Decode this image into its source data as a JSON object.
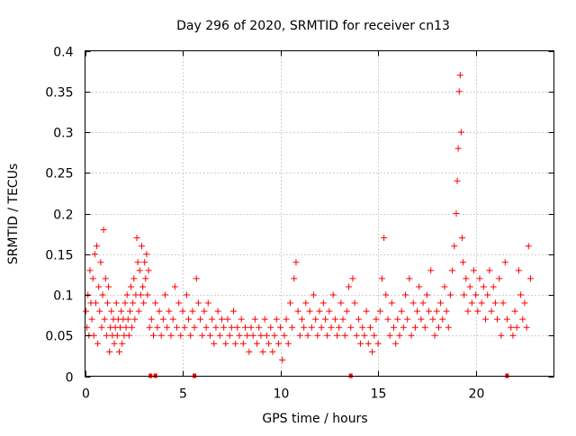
{
  "chart_data": {
    "type": "scatter",
    "title": "Day 296 of 2020, SRMTID for receiver cn13",
    "xlabel": "GPS time / hours",
    "ylabel": "SRMTID / TECUs",
    "xlim": [
      0,
      24
    ],
    "ylim": [
      0,
      0.4
    ],
    "x_ticks": [
      0,
      5,
      10,
      15,
      20
    ],
    "x_tick_labels": [
      "0",
      "5",
      "10",
      "15",
      "20"
    ],
    "y_ticks": [
      0,
      0.05,
      0.1,
      0.15,
      0.2,
      0.25,
      0.3,
      0.35,
      0.4
    ],
    "y_tick_labels": [
      "0",
      "0.05",
      "0.1",
      "0.15",
      "0.2",
      "0.25",
      "0.3",
      "0.35",
      "0.4"
    ],
    "grid": true,
    "marker": "+",
    "series": [
      {
        "name": "SRMTID",
        "color": "#ff0000",
        "points": [
          [
            0.05,
            0.08
          ],
          [
            0.1,
            0.06
          ],
          [
            0.15,
            0.1
          ],
          [
            0.2,
            0.05
          ],
          [
            0.25,
            0.13
          ],
          [
            0.3,
            0.09
          ],
          [
            0.35,
            0.07
          ],
          [
            0.4,
            0.12
          ],
          [
            0.45,
            0.05
          ],
          [
            0.5,
            0.15
          ],
          [
            0.55,
            0.09
          ],
          [
            0.6,
            0.16
          ],
          [
            0.65,
            0.04
          ],
          [
            0.7,
            0.11
          ],
          [
            0.75,
            0.08
          ],
          [
            0.8,
            0.14
          ],
          [
            0.85,
            0.06
          ],
          [
            0.9,
            0.1
          ],
          [
            0.95,
            0.18
          ],
          [
            1.0,
            0.07
          ],
          [
            1.05,
            0.12
          ],
          [
            1.1,
            0.05
          ],
          [
            1.15,
            0.09
          ],
          [
            1.2,
            0.11
          ],
          [
            1.25,
            0.03
          ],
          [
            1.3,
            0.06
          ],
          [
            1.35,
            0.08
          ],
          [
            1.4,
            0.05
          ],
          [
            1.45,
            0.07
          ],
          [
            1.5,
            0.04
          ],
          [
            1.55,
            0.06
          ],
          [
            1.6,
            0.09
          ],
          [
            1.65,
            0.05
          ],
          [
            1.7,
            0.07
          ],
          [
            1.75,
            0.03
          ],
          [
            1.8,
            0.06
          ],
          [
            1.85,
            0.08
          ],
          [
            1.9,
            0.04
          ],
          [
            1.95,
            0.07
          ],
          [
            2.0,
            0.05
          ],
          [
            2.05,
            0.09
          ],
          [
            2.1,
            0.06
          ],
          [
            2.15,
            0.1
          ],
          [
            2.2,
            0.07
          ],
          [
            2.25,
            0.05
          ],
          [
            2.3,
            0.08
          ],
          [
            2.35,
            0.11
          ],
          [
            2.4,
            0.06
          ],
          [
            2.45,
            0.09
          ],
          [
            2.5,
            0.12
          ],
          [
            2.55,
            0.07
          ],
          [
            2.6,
            0.1
          ],
          [
            2.65,
            0.17
          ],
          [
            2.7,
            0.14
          ],
          [
            2.75,
            0.08
          ],
          [
            2.8,
            0.13
          ],
          [
            2.85,
            0.1
          ],
          [
            2.9,
            0.16
          ],
          [
            2.95,
            0.11
          ],
          [
            3.0,
            0.09
          ],
          [
            3.05,
            0.14
          ],
          [
            3.1,
            0.12
          ],
          [
            3.15,
            0.15
          ],
          [
            3.2,
            0.1
          ],
          [
            3.25,
            0.13
          ],
          [
            3.3,
            0.06
          ],
          [
            3.4,
            0.07
          ],
          [
            3.5,
            0.05
          ],
          [
            3.6,
            0.09
          ],
          [
            3.7,
            0.06
          ],
          [
            3.8,
            0.08
          ],
          [
            3.9,
            0.05
          ],
          [
            4.0,
            0.07
          ],
          [
            4.1,
            0.1
          ],
          [
            4.2,
            0.06
          ],
          [
            4.3,
            0.08
          ],
          [
            4.4,
            0.05
          ],
          [
            4.5,
            0.07
          ],
          [
            4.6,
            0.11
          ],
          [
            4.7,
            0.06
          ],
          [
            4.8,
            0.09
          ],
          [
            4.9,
            0.05
          ],
          [
            5.0,
            0.08
          ],
          [
            5.1,
            0.06
          ],
          [
            5.2,
            0.1
          ],
          [
            5.3,
            0.07
          ],
          [
            5.4,
            0.05
          ],
          [
            5.5,
            0.08
          ],
          [
            5.6,
            0.06
          ],
          [
            5.7,
            0.12
          ],
          [
            5.8,
            0.09
          ],
          [
            5.9,
            0.07
          ],
          [
            6.0,
            0.05
          ],
          [
            6.1,
            0.08
          ],
          [
            6.2,
            0.06
          ],
          [
            6.3,
            0.09
          ],
          [
            6.4,
            0.05
          ],
          [
            6.5,
            0.07
          ],
          [
            6.6,
            0.04
          ],
          [
            6.7,
            0.06
          ],
          [
            6.8,
            0.08
          ],
          [
            6.9,
            0.05
          ],
          [
            7.0,
            0.07
          ],
          [
            7.1,
            0.06
          ],
          [
            7.2,
            0.04
          ],
          [
            7.3,
            0.07
          ],
          [
            7.4,
            0.05
          ],
          [
            7.5,
            0.06
          ],
          [
            7.6,
            0.08
          ],
          [
            7.7,
            0.04
          ],
          [
            7.8,
            0.06
          ],
          [
            7.9,
            0.05
          ],
          [
            8.0,
            0.07
          ],
          [
            8.1,
            0.04
          ],
          [
            8.2,
            0.06
          ],
          [
            8.3,
            0.05
          ],
          [
            8.4,
            0.03
          ],
          [
            8.5,
            0.06
          ],
          [
            8.6,
            0.05
          ],
          [
            8.7,
            0.07
          ],
          [
            8.8,
            0.04
          ],
          [
            8.9,
            0.06
          ],
          [
            9.0,
            0.05
          ],
          [
            9.1,
            0.03
          ],
          [
            9.2,
            0.07
          ],
          [
            9.3,
            0.05
          ],
          [
            9.4,
            0.04
          ],
          [
            9.5,
            0.06
          ],
          [
            9.6,
            0.03
          ],
          [
            9.7,
            0.05
          ],
          [
            9.8,
            0.07
          ],
          [
            9.9,
            0.04
          ],
          [
            10.0,
            0.06
          ],
          [
            10.1,
            0.02
          ],
          [
            10.2,
            0.05
          ],
          [
            10.3,
            0.07
          ],
          [
            10.4,
            0.04
          ],
          [
            10.5,
            0.09
          ],
          [
            10.6,
            0.06
          ],
          [
            10.7,
            0.12
          ],
          [
            10.8,
            0.14
          ],
          [
            10.9,
            0.08
          ],
          [
            11.0,
            0.05
          ],
          [
            11.1,
            0.07
          ],
          [
            11.2,
            0.06
          ],
          [
            11.3,
            0.09
          ],
          [
            11.4,
            0.05
          ],
          [
            11.5,
            0.08
          ],
          [
            11.6,
            0.06
          ],
          [
            11.7,
            0.1
          ],
          [
            11.8,
            0.07
          ],
          [
            11.9,
            0.05
          ],
          [
            12.0,
            0.08
          ],
          [
            12.1,
            0.06
          ],
          [
            12.2,
            0.09
          ],
          [
            12.3,
            0.07
          ],
          [
            12.4,
            0.05
          ],
          [
            12.5,
            0.08
          ],
          [
            12.6,
            0.06
          ],
          [
            12.7,
            0.1
          ],
          [
            12.8,
            0.07
          ],
          [
            12.9,
            0.05
          ],
          [
            13.0,
            0.06
          ],
          [
            13.1,
            0.09
          ],
          [
            13.2,
            0.07
          ],
          [
            13.3,
            0.05
          ],
          [
            13.4,
            0.08
          ],
          [
            13.5,
            0.11
          ],
          [
            13.6,
            0.06
          ],
          [
            13.7,
            0.12
          ],
          [
            13.8,
            0.09
          ],
          [
            13.9,
            0.05
          ],
          [
            14.0,
            0.07
          ],
          [
            14.1,
            0.04
          ],
          [
            14.2,
            0.06
          ],
          [
            14.3,
            0.05
          ],
          [
            14.4,
            0.08
          ],
          [
            14.5,
            0.04
          ],
          [
            14.6,
            0.06
          ],
          [
            14.7,
            0.03
          ],
          [
            14.8,
            0.05
          ],
          [
            14.9,
            0.07
          ],
          [
            15.0,
            0.04
          ],
          [
            15.1,
            0.08
          ],
          [
            15.2,
            0.12
          ],
          [
            15.3,
            0.17
          ],
          [
            15.4,
            0.1
          ],
          [
            15.5,
            0.07
          ],
          [
            15.6,
            0.05
          ],
          [
            15.7,
            0.09
          ],
          [
            15.8,
            0.06
          ],
          [
            15.9,
            0.04
          ],
          [
            16.0,
            0.07
          ],
          [
            16.1,
            0.05
          ],
          [
            16.2,
            0.08
          ],
          [
            16.3,
            0.06
          ],
          [
            16.4,
            0.1
          ],
          [
            16.5,
            0.07
          ],
          [
            16.6,
            0.12
          ],
          [
            16.7,
            0.05
          ],
          [
            16.8,
            0.09
          ],
          [
            16.9,
            0.06
          ],
          [
            17.0,
            0.08
          ],
          [
            17.1,
            0.11
          ],
          [
            17.2,
            0.07
          ],
          [
            17.3,
            0.09
          ],
          [
            17.4,
            0.06
          ],
          [
            17.5,
            0.1
          ],
          [
            17.6,
            0.08
          ],
          [
            17.7,
            0.13
          ],
          [
            17.8,
            0.07
          ],
          [
            17.9,
            0.05
          ],
          [
            18.0,
            0.08
          ],
          [
            18.1,
            0.06
          ],
          [
            18.2,
            0.09
          ],
          [
            18.3,
            0.07
          ],
          [
            18.4,
            0.11
          ],
          [
            18.5,
            0.08
          ],
          [
            18.6,
            0.06
          ],
          [
            18.7,
            0.1
          ],
          [
            18.8,
            0.13
          ],
          [
            18.9,
            0.16
          ],
          [
            19.0,
            0.2
          ],
          [
            19.05,
            0.24
          ],
          [
            19.1,
            0.28
          ],
          [
            19.15,
            0.35
          ],
          [
            19.2,
            0.37
          ],
          [
            19.25,
            0.3
          ],
          [
            19.3,
            0.17
          ],
          [
            19.35,
            0.14
          ],
          [
            19.4,
            0.1
          ],
          [
            19.5,
            0.12
          ],
          [
            19.6,
            0.08
          ],
          [
            19.7,
            0.11
          ],
          [
            19.8,
            0.09
          ],
          [
            19.9,
            0.13
          ],
          [
            20.0,
            0.1
          ],
          [
            20.1,
            0.08
          ],
          [
            20.2,
            0.12
          ],
          [
            20.3,
            0.09
          ],
          [
            20.4,
            0.11
          ],
          [
            20.5,
            0.07
          ],
          [
            20.6,
            0.1
          ],
          [
            20.7,
            0.13
          ],
          [
            20.8,
            0.08
          ],
          [
            20.9,
            0.11
          ],
          [
            21.0,
            0.09
          ],
          [
            21.1,
            0.07
          ],
          [
            21.2,
            0.12
          ],
          [
            21.3,
            0.05
          ],
          [
            21.4,
            0.09
          ],
          [
            21.5,
            0.14
          ],
          [
            21.6,
            0.07
          ],
          [
            21.8,
            0.06
          ],
          [
            21.9,
            0.05
          ],
          [
            22.0,
            0.08
          ],
          [
            22.1,
            0.06
          ],
          [
            22.2,
            0.13
          ],
          [
            22.3,
            0.1
          ],
          [
            22.4,
            0.07
          ],
          [
            22.5,
            0.09
          ],
          [
            22.6,
            0.06
          ],
          [
            22.7,
            0.16
          ],
          [
            22.8,
            0.12
          ]
        ]
      }
    ],
    "zero_markers_x": [
      3.35,
      3.6,
      5.6,
      13.6,
      21.6
    ]
  }
}
